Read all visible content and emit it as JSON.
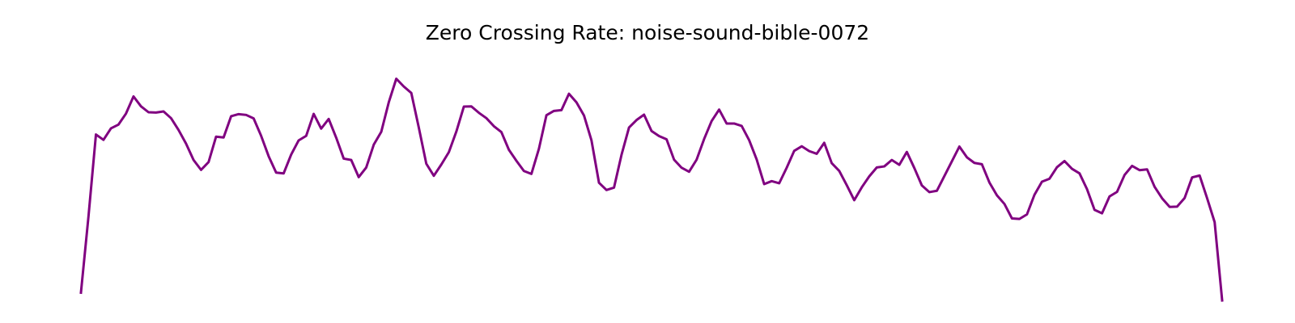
{
  "chart_data": {
    "type": "line",
    "title": "Zero Crossing Rate: noise-sound-bible-0072",
    "xlabel": "",
    "ylabel": "",
    "axes_visible": false,
    "grid": false,
    "line_color": "#800080",
    "ylim": [
      0,
      1
    ],
    "series": [
      {
        "values": [
          0.08,
          0.363,
          0.67,
          0.65,
          0.693,
          0.707,
          0.748,
          0.812,
          0.775,
          0.753,
          0.752,
          0.756,
          0.731,
          0.687,
          0.636,
          0.575,
          0.538,
          0.567,
          0.662,
          0.659,
          0.738,
          0.746,
          0.743,
          0.73,
          0.665,
          0.589,
          0.528,
          0.525,
          0.595,
          0.648,
          0.665,
          0.747,
          0.692,
          0.728,
          0.658,
          0.58,
          0.575,
          0.511,
          0.547,
          0.632,
          0.68,
          0.79,
          0.878,
          0.849,
          0.825,
          0.696,
          0.561,
          0.516,
          0.558,
          0.604,
          0.681,
          0.774,
          0.775,
          0.751,
          0.731,
          0.701,
          0.679,
          0.613,
          0.572,
          0.534,
          0.523,
          0.617,
          0.742,
          0.758,
          0.761,
          0.822,
          0.79,
          0.741,
          0.648,
          0.49,
          0.463,
          0.472,
          0.594,
          0.696,
          0.724,
          0.744,
          0.683,
          0.664,
          0.652,
          0.576,
          0.546,
          0.531,
          0.576,
          0.653,
          0.72,
          0.763,
          0.711,
          0.711,
          0.702,
          0.649,
          0.577,
          0.485,
          0.496,
          0.488,
          0.546,
          0.609,
          0.626,
          0.608,
          0.598,
          0.639,
          0.563,
          0.534,
          0.481,
          0.425,
          0.473,
          0.514,
          0.547,
          0.551,
          0.575,
          0.557,
          0.605,
          0.545,
          0.48,
          0.455,
          0.46,
          0.515,
          0.57,
          0.625,
          0.585,
          0.564,
          0.559,
          0.491,
          0.443,
          0.411,
          0.357,
          0.355,
          0.372,
          0.445,
          0.494,
          0.505,
          0.548,
          0.571,
          0.542,
          0.525,
          0.466,
          0.389,
          0.376,
          0.439,
          0.456,
          0.519,
          0.553,
          0.537,
          0.54,
          0.475,
          0.432,
          0.4,
          0.401,
          0.433,
          0.51,
          0.517,
          0.432,
          0.343,
          0.051
        ]
      }
    ]
  }
}
